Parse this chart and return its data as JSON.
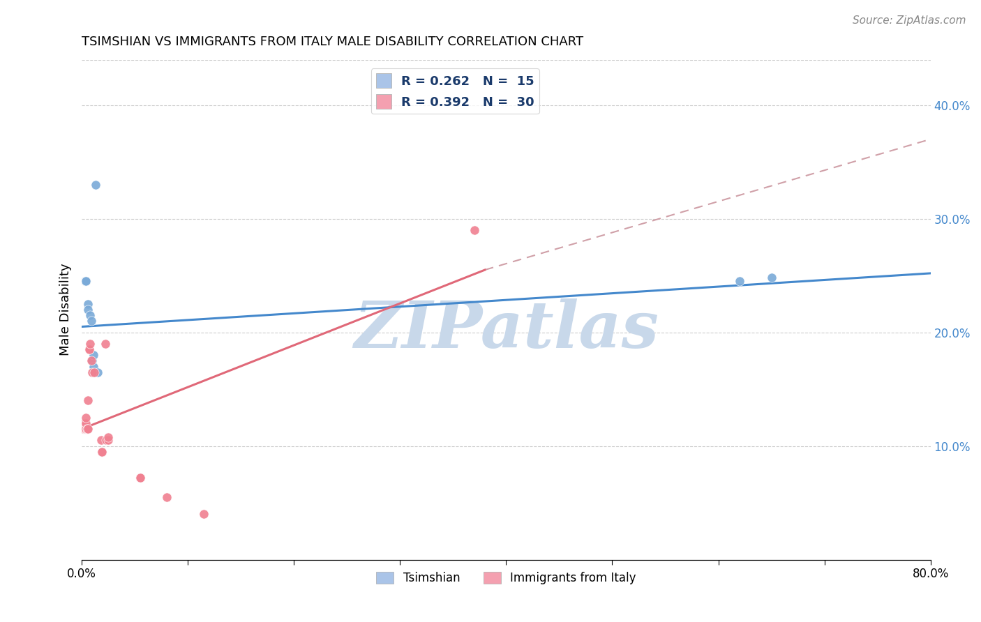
{
  "title": "TSIMSHIAN VS IMMIGRANTS FROM ITALY MALE DISABILITY CORRELATION CHART",
  "source": "Source: ZipAtlas.com",
  "ylabel": "Male Disability",
  "xlim": [
    0.0,
    0.8
  ],
  "ylim": [
    0.0,
    0.44
  ],
  "xtick_positions": [
    0.0,
    0.1,
    0.2,
    0.3,
    0.4,
    0.5,
    0.6,
    0.7,
    0.8
  ],
  "yticks_right": [
    0.1,
    0.2,
    0.3,
    0.4
  ],
  "ytick_labels_right": [
    "10.0%",
    "20.0%",
    "30.0%",
    "40.0%"
  ],
  "grid_color": "#cccccc",
  "background_color": "#ffffff",
  "watermark_text": "ZIPatlas",
  "watermark_color": "#c8d8ea",
  "legend1_label": "R = 0.262   N =  15",
  "legend2_label": "R = 0.392   N =  30",
  "legend_color": "#1a3a6b",
  "tsimshian_fill_color": "#aac4e8",
  "italy_fill_color": "#f4a0b0",
  "tsimshian_scatter_color": "#7aaad8",
  "italy_scatter_color": "#f08090",
  "trendline1_color": "#4488cc",
  "trendline2_color": "#e06878",
  "trendline_dash_color": "#d0a0a8",
  "tsimshian_x": [
    0.003,
    0.004,
    0.004,
    0.006,
    0.006,
    0.008,
    0.009,
    0.01,
    0.011,
    0.011,
    0.011,
    0.013,
    0.015,
    0.62,
    0.65
  ],
  "tsimshian_y": [
    0.245,
    0.245,
    0.245,
    0.225,
    0.22,
    0.215,
    0.21,
    0.175,
    0.165,
    0.17,
    0.18,
    0.33,
    0.165,
    0.245,
    0.248
  ],
  "italy_x": [
    0.001,
    0.002,
    0.002,
    0.003,
    0.003,
    0.004,
    0.004,
    0.004,
    0.005,
    0.005,
    0.006,
    0.006,
    0.007,
    0.007,
    0.008,
    0.009,
    0.01,
    0.012,
    0.018,
    0.019,
    0.019,
    0.022,
    0.023,
    0.025,
    0.025,
    0.055,
    0.055,
    0.08,
    0.115,
    0.37
  ],
  "italy_y": [
    0.115,
    0.115,
    0.12,
    0.115,
    0.115,
    0.115,
    0.12,
    0.125,
    0.115,
    0.115,
    0.115,
    0.14,
    0.185,
    0.185,
    0.19,
    0.175,
    0.165,
    0.165,
    0.105,
    0.095,
    0.095,
    0.19,
    0.105,
    0.105,
    0.108,
    0.072,
    0.072,
    0.055,
    0.04,
    0.29
  ],
  "trendline1_x0": 0.0,
  "trendline1_x1": 0.8,
  "trendline1_y0": 0.205,
  "trendline1_y1": 0.252,
  "trendline2_solid_x0": 0.0,
  "trendline2_solid_x1": 0.38,
  "trendline2_solid_y0": 0.115,
  "trendline2_solid_y1": 0.255,
  "trendline2_dash_x0": 0.38,
  "trendline2_dash_x1": 0.8,
  "trendline2_dash_y0": 0.255,
  "trendline2_dash_y1": 0.37
}
